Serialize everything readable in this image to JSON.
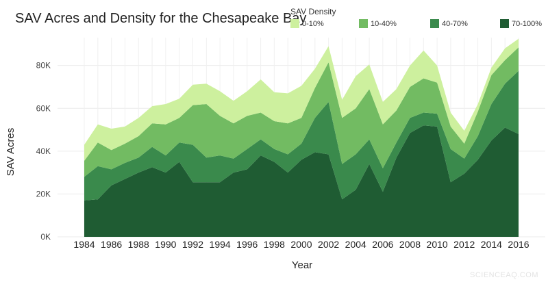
{
  "chart_data": {
    "type": "area",
    "stacked": true,
    "title": "SAV Acres and Density for the Chesapeake Bay",
    "xlabel": "Year",
    "ylabel": "SAV Acres",
    "xlim": [
      1984,
      2016
    ],
    "ylim": [
      0,
      93000
    ],
    "yticks": [
      0,
      20000,
      40000,
      60000,
      80000
    ],
    "ytick_labels": [
      "0K",
      "20K",
      "40K",
      "60K",
      "80K"
    ],
    "xticks": [
      1984,
      1986,
      1988,
      1990,
      1992,
      1994,
      1996,
      1998,
      2000,
      2002,
      2004,
      2006,
      2008,
      2010,
      2012,
      2014,
      2016
    ],
    "grid": true,
    "legend": {
      "title": "SAV Density",
      "placement": "top-right"
    },
    "x": [
      1984,
      1985,
      1986,
      1987,
      1988,
      1989,
      1990,
      1991,
      1992,
      1993,
      1994,
      1995,
      1996,
      1997,
      1998,
      1999,
      2000,
      2001,
      2002,
      2003,
      2004,
      2005,
      2006,
      2007,
      2008,
      2009,
      2010,
      2011,
      2012,
      2013,
      2014,
      2015,
      2016
    ],
    "series": [
      {
        "name": "70-100%",
        "color": "#1f5c33",
        "values": [
          17000,
          17500,
          24000,
          27000,
          30000,
          32500,
          30000,
          35000,
          25500,
          25500,
          25500,
          30000,
          31500,
          38000,
          35000,
          30000,
          36000,
          39500,
          38500,
          17500,
          22000,
          34000,
          21000,
          37000,
          48500,
          52000,
          51500,
          25500,
          29500,
          36000,
          45000,
          51000,
          48000
        ]
      },
      {
        "name": "40-70%",
        "color": "#3a8a4c",
        "values": [
          11000,
          15500,
          7500,
          7500,
          7000,
          9500,
          8000,
          9000,
          17500,
          11500,
          12500,
          6500,
          9500,
          7500,
          6000,
          8500,
          7500,
          16000,
          24500,
          16500,
          16500,
          11500,
          11000,
          7000,
          7000,
          6000,
          6000,
          15500,
          7000,
          11000,
          17000,
          20500,
          29500
        ]
      },
      {
        "name": "10-40%",
        "color": "#72bb62",
        "values": [
          7500,
          11000,
          9000,
          9000,
          10000,
          11000,
          14500,
          11500,
          18500,
          25000,
          18500,
          16500,
          15500,
          12500,
          13000,
          14500,
          12000,
          14000,
          18500,
          21500,
          21500,
          23500,
          20500,
          15000,
          14500,
          16000,
          14500,
          10500,
          7000,
          11500,
          13500,
          11000,
          11000
        ]
      },
      {
        "name": "0-10%",
        "color": "#cdf09e",
        "values": [
          7500,
          8500,
          10000,
          8000,
          8500,
          8000,
          9500,
          9000,
          9500,
          9500,
          11500,
          10500,
          11500,
          15500,
          13500,
          14000,
          15000,
          9000,
          7500,
          8500,
          15000,
          11500,
          10500,
          10000,
          10000,
          13000,
          8000,
          6500,
          6000,
          3500,
          3500,
          5500,
          4000
        ]
      }
    ]
  },
  "watermark": "SCIENCEAQ.COM"
}
